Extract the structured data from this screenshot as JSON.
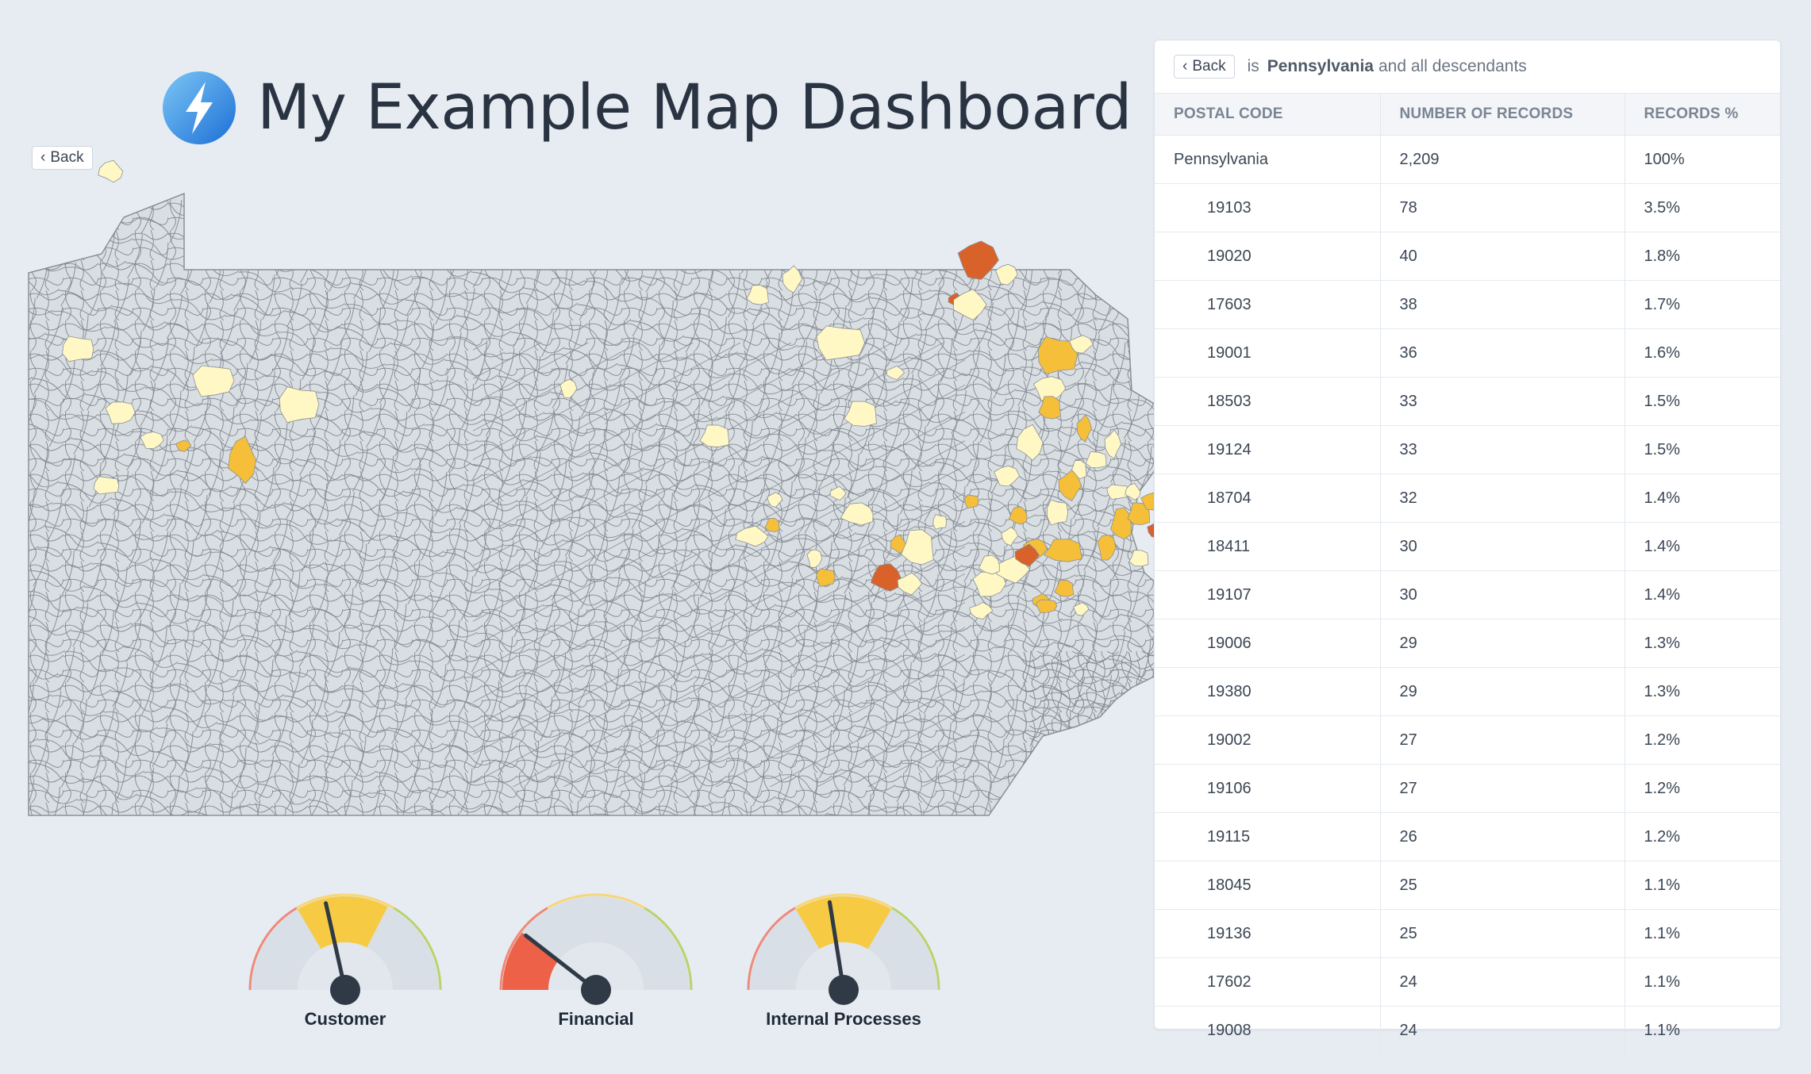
{
  "header": {
    "title": "My Example Map Dashboard",
    "logo_icon": "lightning-bolt-icon"
  },
  "map": {
    "back_label": "Back",
    "region": "Pennsylvania"
  },
  "colors": {
    "background": "#e7ecf2",
    "map_base": "#d9dee2",
    "map_border": "#8a9098",
    "scale_low": "#fff7c4",
    "scale_mid": "#f5bf3a",
    "scale_high": "#d9622b",
    "scale_max": "#a0224a"
  },
  "gauges": [
    {
      "label": "Customer",
      "value": 0.43
    },
    {
      "label": "Financial",
      "value": 0.21
    },
    {
      "label": "Internal Processes",
      "value": 0.45
    }
  ],
  "panel": {
    "back_label": "Back",
    "filter_prefix": "is",
    "filter_value": "Pennsylvania",
    "filter_suffix": "and all descendants",
    "columns": [
      "POSTAL CODE",
      "NUMBER OF RECORDS",
      "RECORDS %"
    ],
    "rows": [
      [
        "Pennsylvania",
        "2,209",
        "100%"
      ],
      [
        "19103",
        "78",
        "3.5%"
      ],
      [
        "19020",
        "40",
        "1.8%"
      ],
      [
        "17603",
        "38",
        "1.7%"
      ],
      [
        "19001",
        "36",
        "1.6%"
      ],
      [
        "18503",
        "33",
        "1.5%"
      ],
      [
        "19124",
        "33",
        "1.5%"
      ],
      [
        "18704",
        "32",
        "1.4%"
      ],
      [
        "18411",
        "30",
        "1.4%"
      ],
      [
        "19107",
        "30",
        "1.4%"
      ],
      [
        "19006",
        "29",
        "1.3%"
      ],
      [
        "19380",
        "29",
        "1.3%"
      ],
      [
        "19002",
        "27",
        "1.2%"
      ],
      [
        "19106",
        "27",
        "1.2%"
      ],
      [
        "19115",
        "26",
        "1.2%"
      ],
      [
        "18045",
        "25",
        "1.1%"
      ],
      [
        "19136",
        "25",
        "1.1%"
      ],
      [
        "17602",
        "24",
        "1.1%"
      ],
      [
        "19008",
        "24",
        "1.1%"
      ]
    ]
  }
}
